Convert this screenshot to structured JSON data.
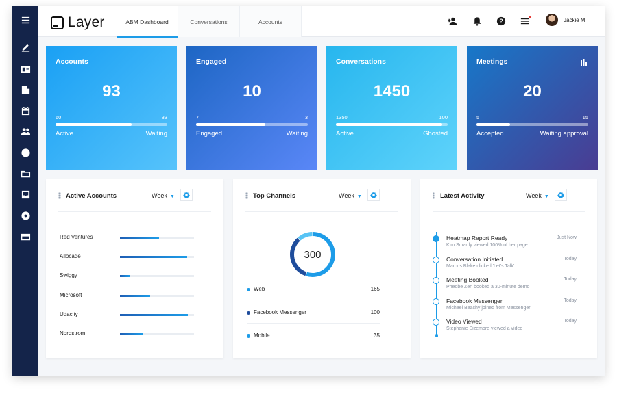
{
  "header": {
    "logo_text": "Layer",
    "tabs": [
      {
        "label": "ABM Dashboard",
        "active": true
      },
      {
        "label": "Conversations",
        "active": false
      },
      {
        "label": "Accounts",
        "active": false
      }
    ],
    "icons": [
      "add-user-icon",
      "bell-icon",
      "help-icon",
      "menu-list-icon"
    ],
    "user_name": "Jackie M"
  },
  "sidebar": {
    "items": [
      "menu-icon",
      "edit-icon",
      "contact-card-icon",
      "building-icon",
      "calendar-icon",
      "people-icon",
      "globe-icon",
      "folder-icon",
      "inbox-icon",
      "disc-icon",
      "card-icon"
    ]
  },
  "cards": [
    {
      "title": "Accounts",
      "value": "93",
      "left_num": "60",
      "right_num": "33",
      "left_label": "Active",
      "right_label": "Waiting",
      "progress": 0.68,
      "gradient": [
        "#1aa0f4",
        "#56c3fb"
      ]
    },
    {
      "title": "Engaged",
      "value": "10",
      "left_num": "7",
      "right_num": "3",
      "left_label": "Engaged",
      "right_label": "Waiting",
      "progress": 0.62,
      "gradient": [
        "#1d66c4",
        "#5a87f7"
      ]
    },
    {
      "title": "Conversations",
      "value": "1450",
      "left_num": "1350",
      "right_num": "100",
      "left_label": "Active",
      "right_label": "Ghosted",
      "progress": 0.95,
      "gradient": [
        "#27b6ee",
        "#5fd3fb"
      ]
    },
    {
      "title": "Meetings",
      "value": "20",
      "left_num": "5",
      "right_num": "15",
      "left_label": "Accepted",
      "right_label": "Waiting approval",
      "progress": 0.3,
      "gradient": [
        "#1778c9",
        "#4a3c92"
      ],
      "icon": "bar-chart-icon"
    }
  ],
  "active_accounts": {
    "title": "Active Accounts",
    "period": "Week",
    "rows": [
      {
        "name": "Red Ventures",
        "level": 0.53
      },
      {
        "name": "Allocade",
        "level": 0.91
      },
      {
        "name": "Swiggy",
        "level": 0.13
      },
      {
        "name": "Microsoft",
        "level": 0.41
      },
      {
        "name": "Udacity",
        "level": 0.92
      },
      {
        "name": "Nordstrom",
        "level": 0.31
      }
    ]
  },
  "top_channels": {
    "title": "Top Channels",
    "period": "Week",
    "total": "300",
    "channels": [
      {
        "name": "Web",
        "value": "165",
        "color": "#1d9ce8"
      },
      {
        "name": "Facebook Messenger",
        "value": "100",
        "color": "#1f4d9c"
      },
      {
        "name": "Mobile",
        "value": "35",
        "color": "#1d9ce8"
      }
    ]
  },
  "latest_activity": {
    "title": "Latest Activity",
    "period": "Week",
    "items": [
      {
        "title": "Heatmap Report Ready",
        "sub": "Kim Smartly viewed 100% of her page",
        "time": "Just Now"
      },
      {
        "title": "Conversation Initiated",
        "sub": "Marcus Blake clicked 'Let's Talk'",
        "time": "Today"
      },
      {
        "title": "Meeting Booked",
        "sub": "Pheobe Zen booked a 30-minute demo",
        "time": "Today"
      },
      {
        "title": "Facebook Messenger",
        "sub": "Michael Beachy joined from Messenger",
        "time": "Today"
      },
      {
        "title": "Video Viewed",
        "sub": "Stephanie Sizemore viewed a video",
        "time": "Today"
      }
    ]
  }
}
